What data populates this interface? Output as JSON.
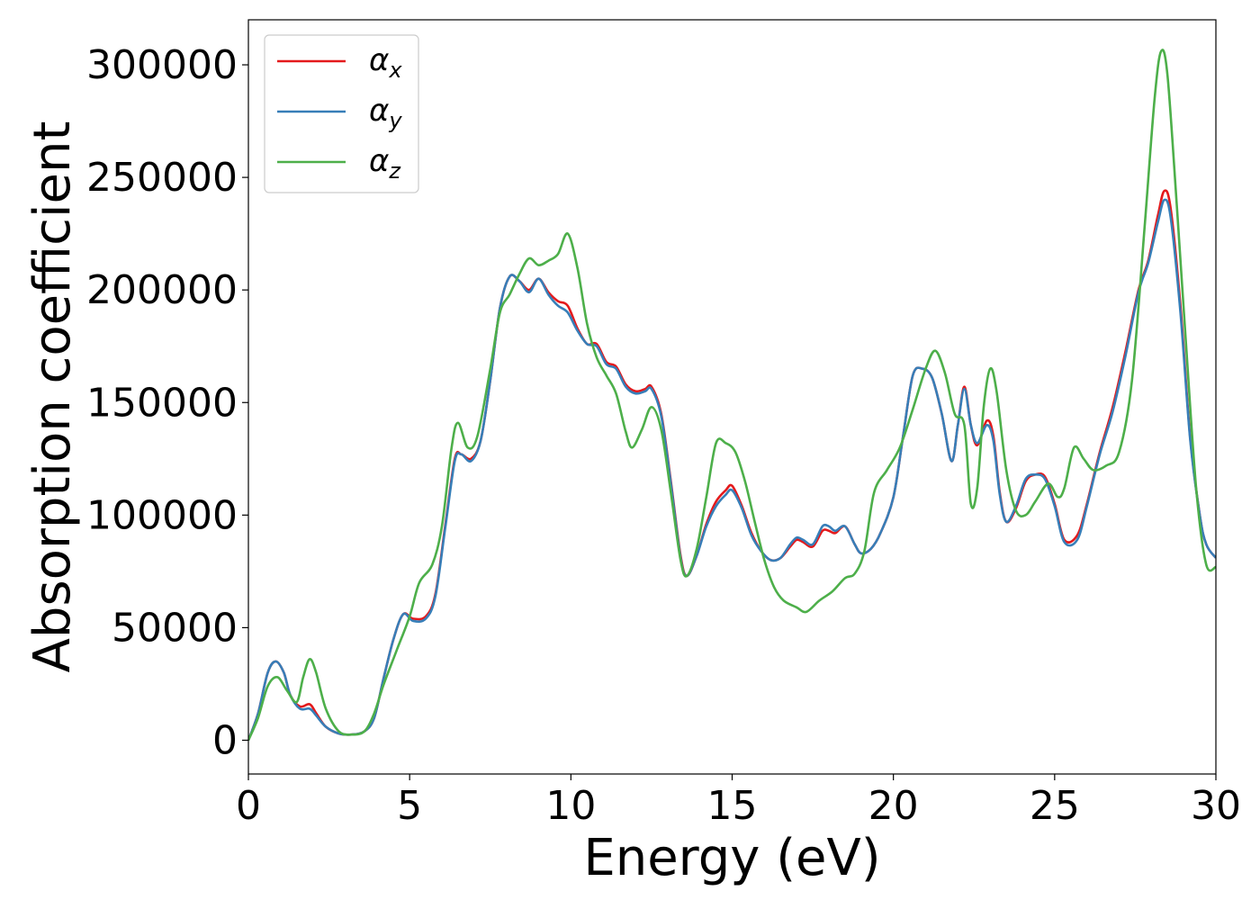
{
  "chart_data": {
    "type": "line",
    "title": "",
    "xlabel": "Energy (eV)",
    "ylabel": "Absorption coefficient",
    "xlim": [
      0,
      30
    ],
    "ylim": [
      -15000,
      320000
    ],
    "xticks": [
      0,
      5,
      10,
      15,
      20,
      25,
      30
    ],
    "yticks": [
      0,
      50000,
      100000,
      150000,
      200000,
      250000,
      300000
    ],
    "grid": false,
    "legend_position": "top-left",
    "series": [
      {
        "name": "α_x",
        "legend_main": "α",
        "legend_sub": "x",
        "color": "#e41a1c",
        "points": [
          [
            0,
            0
          ],
          [
            0.3,
            12000
          ],
          [
            0.6,
            30000
          ],
          [
            0.85,
            35000
          ],
          [
            1.1,
            30000
          ],
          [
            1.3,
            20000
          ],
          [
            1.6,
            15000
          ],
          [
            1.9,
            16000
          ],
          [
            2.1,
            12000
          ],
          [
            2.4,
            6000
          ],
          [
            2.8,
            3000
          ],
          [
            3.2,
            2500
          ],
          [
            3.6,
            4000
          ],
          [
            3.9,
            10000
          ],
          [
            4.2,
            28000
          ],
          [
            4.5,
            45000
          ],
          [
            4.8,
            56000
          ],
          [
            5.1,
            54000
          ],
          [
            5.5,
            55000
          ],
          [
            5.8,
            65000
          ],
          [
            6.1,
            95000
          ],
          [
            6.4,
            125000
          ],
          [
            6.6,
            127000
          ],
          [
            6.9,
            125000
          ],
          [
            7.2,
            133000
          ],
          [
            7.5,
            160000
          ],
          [
            7.8,
            192000
          ],
          [
            8.1,
            206000
          ],
          [
            8.4,
            204000
          ],
          [
            8.7,
            200000
          ],
          [
            9.0,
            205000
          ],
          [
            9.3,
            199000
          ],
          [
            9.6,
            195000
          ],
          [
            9.9,
            193000
          ],
          [
            10.2,
            183000
          ],
          [
            10.5,
            176000
          ],
          [
            10.8,
            176000
          ],
          [
            11.1,
            168000
          ],
          [
            11.4,
            166000
          ],
          [
            11.7,
            158000
          ],
          [
            12.0,
            155000
          ],
          [
            12.3,
            156000
          ],
          [
            12.5,
            157000
          ],
          [
            12.8,
            145000
          ],
          [
            13.1,
            115000
          ],
          [
            13.4,
            82000
          ],
          [
            13.6,
            73000
          ],
          [
            13.9,
            82000
          ],
          [
            14.2,
            96000
          ],
          [
            14.5,
            106000
          ],
          [
            14.8,
            111000
          ],
          [
            15.0,
            113000
          ],
          [
            15.3,
            104000
          ],
          [
            15.6,
            92000
          ],
          [
            15.9,
            84000
          ],
          [
            16.2,
            80000
          ],
          [
            16.5,
            81000
          ],
          [
            16.8,
            86000
          ],
          [
            17.0,
            89000
          ],
          [
            17.2,
            88000
          ],
          [
            17.5,
            86000
          ],
          [
            17.8,
            93000
          ],
          [
            18.0,
            93000
          ],
          [
            18.2,
            92000
          ],
          [
            18.5,
            95000
          ],
          [
            18.8,
            87000
          ],
          [
            19.0,
            83000
          ],
          [
            19.3,
            85000
          ],
          [
            19.6,
            92000
          ],
          [
            20.0,
            108000
          ],
          [
            20.3,
            135000
          ],
          [
            20.6,
            162000
          ],
          [
            20.9,
            165000
          ],
          [
            21.2,
            161000
          ],
          [
            21.5,
            145000
          ],
          [
            21.8,
            124000
          ],
          [
            22.0,
            140000
          ],
          [
            22.2,
            157000
          ],
          [
            22.4,
            140000
          ],
          [
            22.6,
            131000
          ],
          [
            22.9,
            142000
          ],
          [
            23.1,
            135000
          ],
          [
            23.3,
            110000
          ],
          [
            23.5,
            97000
          ],
          [
            23.8,
            103000
          ],
          [
            24.1,
            115000
          ],
          [
            24.4,
            118000
          ],
          [
            24.7,
            117000
          ],
          [
            25.0,
            105000
          ],
          [
            25.3,
            89000
          ],
          [
            25.7,
            91000
          ],
          [
            26.0,
            105000
          ],
          [
            26.4,
            128000
          ],
          [
            26.8,
            148000
          ],
          [
            27.2,
            173000
          ],
          [
            27.6,
            200000
          ],
          [
            27.9,
            213000
          ],
          [
            28.2,
            233000
          ],
          [
            28.4,
            244000
          ],
          [
            28.6,
            236000
          ],
          [
            28.9,
            193000
          ],
          [
            29.2,
            135000
          ],
          [
            29.5,
            100000
          ],
          [
            29.7,
            87000
          ],
          [
            30.0,
            81000
          ]
        ]
      },
      {
        "name": "α_y",
        "legend_main": "α",
        "legend_sub": "y",
        "color": "#377eb8",
        "points": [
          [
            0,
            0
          ],
          [
            0.3,
            12000
          ],
          [
            0.6,
            30000
          ],
          [
            0.85,
            35000
          ],
          [
            1.1,
            30000
          ],
          [
            1.3,
            20000
          ],
          [
            1.6,
            14000
          ],
          [
            1.9,
            14000
          ],
          [
            2.1,
            11000
          ],
          [
            2.4,
            6000
          ],
          [
            2.8,
            3000
          ],
          [
            3.2,
            2500
          ],
          [
            3.6,
            4000
          ],
          [
            3.9,
            10000
          ],
          [
            4.2,
            28000
          ],
          [
            4.5,
            45000
          ],
          [
            4.8,
            56000
          ],
          [
            5.1,
            53000
          ],
          [
            5.5,
            54000
          ],
          [
            5.8,
            64000
          ],
          [
            6.1,
            94000
          ],
          [
            6.4,
            124000
          ],
          [
            6.6,
            127000
          ],
          [
            6.9,
            124000
          ],
          [
            7.2,
            133000
          ],
          [
            7.5,
            160000
          ],
          [
            7.8,
            192000
          ],
          [
            8.1,
            206000
          ],
          [
            8.4,
            204000
          ],
          [
            8.7,
            199000
          ],
          [
            9.0,
            205000
          ],
          [
            9.3,
            198000
          ],
          [
            9.6,
            193000
          ],
          [
            9.9,
            190000
          ],
          [
            10.2,
            182000
          ],
          [
            10.5,
            176000
          ],
          [
            10.8,
            175000
          ],
          [
            11.1,
            167000
          ],
          [
            11.4,
            165000
          ],
          [
            11.7,
            157000
          ],
          [
            12.0,
            154000
          ],
          [
            12.3,
            155000
          ],
          [
            12.5,
            156000
          ],
          [
            12.8,
            144000
          ],
          [
            13.1,
            114000
          ],
          [
            13.4,
            81000
          ],
          [
            13.6,
            73000
          ],
          [
            13.9,
            82000
          ],
          [
            14.2,
            95000
          ],
          [
            14.5,
            104000
          ],
          [
            14.8,
            109000
          ],
          [
            15.0,
            111000
          ],
          [
            15.3,
            103000
          ],
          [
            15.6,
            91000
          ],
          [
            15.9,
            84000
          ],
          [
            16.2,
            80000
          ],
          [
            16.5,
            81000
          ],
          [
            16.8,
            87000
          ],
          [
            17.0,
            90000
          ],
          [
            17.2,
            89000
          ],
          [
            17.5,
            87000
          ],
          [
            17.8,
            95000
          ],
          [
            18.0,
            95000
          ],
          [
            18.2,
            93000
          ],
          [
            18.5,
            95000
          ],
          [
            18.8,
            87000
          ],
          [
            19.0,
            83000
          ],
          [
            19.3,
            85000
          ],
          [
            19.6,
            92000
          ],
          [
            20.0,
            108000
          ],
          [
            20.3,
            135000
          ],
          [
            20.6,
            162000
          ],
          [
            20.9,
            165000
          ],
          [
            21.2,
            161000
          ],
          [
            21.5,
            145000
          ],
          [
            21.8,
            124000
          ],
          [
            22.0,
            140000
          ],
          [
            22.2,
            156000
          ],
          [
            22.4,
            140000
          ],
          [
            22.6,
            132000
          ],
          [
            22.9,
            140000
          ],
          [
            23.1,
            133000
          ],
          [
            23.3,
            109000
          ],
          [
            23.5,
            97000
          ],
          [
            23.8,
            104000
          ],
          [
            24.1,
            116000
          ],
          [
            24.4,
            118000
          ],
          [
            24.7,
            116000
          ],
          [
            25.0,
            104000
          ],
          [
            25.3,
            88000
          ],
          [
            25.7,
            89000
          ],
          [
            26.0,
            104000
          ],
          [
            26.4,
            127000
          ],
          [
            26.8,
            146000
          ],
          [
            27.2,
            171000
          ],
          [
            27.6,
            199000
          ],
          [
            27.9,
            212000
          ],
          [
            28.2,
            230000
          ],
          [
            28.4,
            240000
          ],
          [
            28.6,
            232000
          ],
          [
            28.9,
            190000
          ],
          [
            29.2,
            134000
          ],
          [
            29.5,
            100000
          ],
          [
            29.7,
            87000
          ],
          [
            30.0,
            81000
          ]
        ]
      },
      {
        "name": "α_z",
        "legend_main": "α",
        "legend_sub": "z",
        "color": "#4daf4a",
        "points": [
          [
            0,
            0
          ],
          [
            0.3,
            10000
          ],
          [
            0.6,
            24000
          ],
          [
            0.9,
            28000
          ],
          [
            1.2,
            22000
          ],
          [
            1.5,
            17000
          ],
          [
            1.7,
            28000
          ],
          [
            1.9,
            36000
          ],
          [
            2.1,
            30000
          ],
          [
            2.4,
            14000
          ],
          [
            2.8,
            4000
          ],
          [
            3.2,
            2500
          ],
          [
            3.6,
            4000
          ],
          [
            3.9,
            12000
          ],
          [
            4.2,
            25000
          ],
          [
            4.6,
            40000
          ],
          [
            5.0,
            55000
          ],
          [
            5.3,
            70000
          ],
          [
            5.7,
            78000
          ],
          [
            6.0,
            95000
          ],
          [
            6.3,
            130000
          ],
          [
            6.5,
            141000
          ],
          [
            6.8,
            130000
          ],
          [
            7.1,
            135000
          ],
          [
            7.5,
            165000
          ],
          [
            7.8,
            190000
          ],
          [
            8.1,
            198000
          ],
          [
            8.4,
            207000
          ],
          [
            8.7,
            214000
          ],
          [
            9.0,
            211000
          ],
          [
            9.3,
            213000
          ],
          [
            9.6,
            216000
          ],
          [
            9.9,
            225000
          ],
          [
            10.2,
            210000
          ],
          [
            10.5,
            185000
          ],
          [
            10.8,
            170000
          ],
          [
            11.1,
            162000
          ],
          [
            11.4,
            154000
          ],
          [
            11.7,
            137000
          ],
          [
            11.9,
            130000
          ],
          [
            12.2,
            138000
          ],
          [
            12.5,
            148000
          ],
          [
            12.8,
            138000
          ],
          [
            13.1,
            110000
          ],
          [
            13.4,
            80000
          ],
          [
            13.6,
            73000
          ],
          [
            13.9,
            85000
          ],
          [
            14.2,
            108000
          ],
          [
            14.5,
            132000
          ],
          [
            14.8,
            132000
          ],
          [
            15.1,
            128000
          ],
          [
            15.4,
            115000
          ],
          [
            15.7,
            97000
          ],
          [
            16.0,
            80000
          ],
          [
            16.3,
            68000
          ],
          [
            16.6,
            62000
          ],
          [
            17.0,
            59000
          ],
          [
            17.3,
            57000
          ],
          [
            17.7,
            62000
          ],
          [
            18.1,
            66000
          ],
          [
            18.5,
            72000
          ],
          [
            18.8,
            74000
          ],
          [
            19.1,
            84000
          ],
          [
            19.4,
            110000
          ],
          [
            19.8,
            120000
          ],
          [
            20.2,
            130000
          ],
          [
            20.6,
            147000
          ],
          [
            21.0,
            165000
          ],
          [
            21.3,
            173000
          ],
          [
            21.6,
            163000
          ],
          [
            21.9,
            145000
          ],
          [
            22.2,
            140000
          ],
          [
            22.4,
            105000
          ],
          [
            22.6,
            112000
          ],
          [
            22.8,
            148000
          ],
          [
            23.0,
            165000
          ],
          [
            23.2,
            155000
          ],
          [
            23.5,
            120000
          ],
          [
            23.8,
            102000
          ],
          [
            24.1,
            100000
          ],
          [
            24.4,
            106000
          ],
          [
            24.8,
            114000
          ],
          [
            25.1,
            108000
          ],
          [
            25.3,
            112000
          ],
          [
            25.6,
            130000
          ],
          [
            25.9,
            125000
          ],
          [
            26.2,
            120000
          ],
          [
            26.6,
            122000
          ],
          [
            27.0,
            128000
          ],
          [
            27.4,
            160000
          ],
          [
            27.8,
            230000
          ],
          [
            28.1,
            285000
          ],
          [
            28.3,
            306000
          ],
          [
            28.5,
            295000
          ],
          [
            28.8,
            235000
          ],
          [
            29.1,
            170000
          ],
          [
            29.4,
            110000
          ],
          [
            29.7,
            78000
          ],
          [
            30.0,
            77000
          ]
        ]
      }
    ]
  }
}
